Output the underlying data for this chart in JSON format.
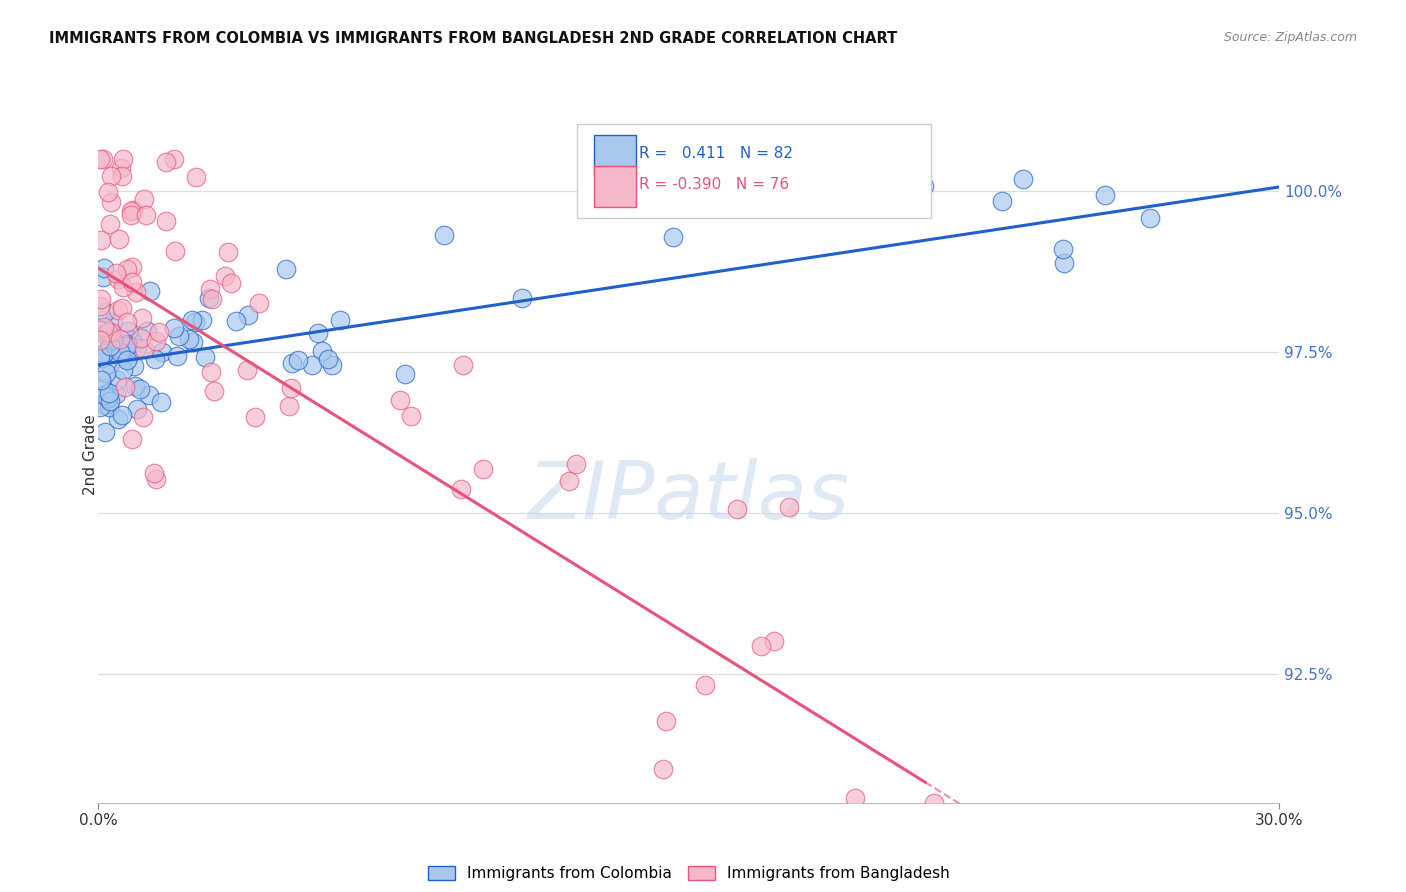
{
  "title": "IMMIGRANTS FROM COLOMBIA VS IMMIGRANTS FROM BANGLADESH 2ND GRADE CORRELATION CHART",
  "source": "Source: ZipAtlas.com",
  "ylabel": "2nd Grade",
  "ymin": 90.5,
  "ymax": 101.3,
  "xmin": 0.0,
  "xmax": 30.0,
  "legend_r_colombia": "0.411",
  "legend_n_colombia": "82",
  "legend_r_bangladesh": "-0.390",
  "legend_n_bangladesh": "76",
  "colombia_color": "#A8C8EE",
  "bangladesh_color": "#F5B8CA",
  "trend_colombia_color": "#2060CC",
  "trend_bangladesh_color": "#E8537A",
  "watermark": "ZIPatlas",
  "yticks": [
    92.5,
    95.0,
    97.5,
    100.0
  ],
  "col_intercept": 97.3,
  "col_slope": 0.092,
  "ban_intercept": 98.8,
  "ban_slope": -0.38,
  "ban_solid_end": 21.0
}
